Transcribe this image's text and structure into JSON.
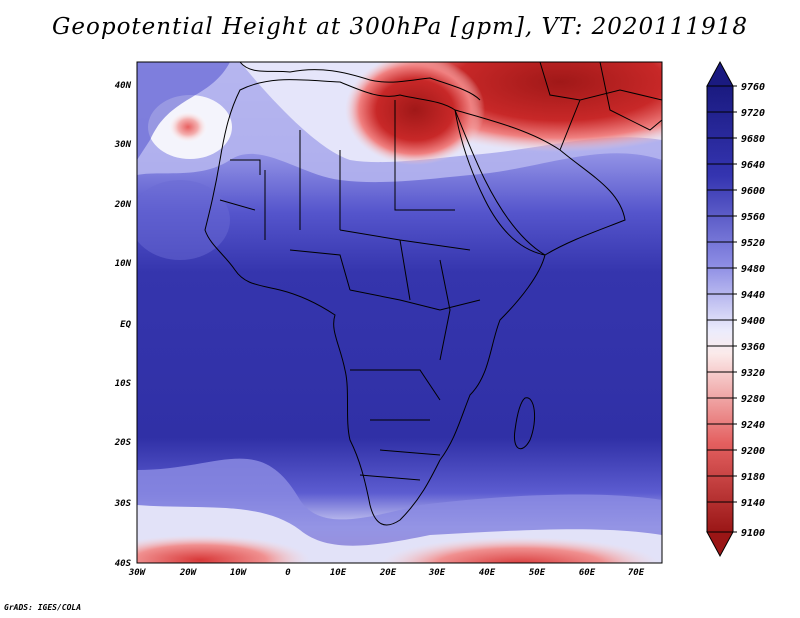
{
  "map": {
    "title": "Geopotential Height at 300hPa [gpm], VT: 2020111918",
    "footer": "GrADS: IGES/COLA",
    "x_ticks": [
      "30W",
      "20W",
      "10W",
      "0",
      "10E",
      "20E",
      "30E",
      "40E",
      "50E",
      "60E",
      "70E"
    ],
    "y_ticks": [
      "40N",
      "30N",
      "20N",
      "10N",
      "EQ",
      "10S",
      "20S",
      "30S",
      "40S"
    ],
    "colorbar_labels": [
      "9760",
      "9720",
      "9680",
      "9640",
      "9600",
      "9560",
      "9520",
      "9480",
      "9440",
      "9400",
      "9360",
      "9320",
      "9280",
      "9240",
      "9200",
      "9180",
      "9140",
      "9100"
    ],
    "colors": {
      "dark_blue": "#2c2c9e",
      "mid_blue": "#3a3ab8",
      "light_blue": "#8f8fe6",
      "pale": "#e6e6fa",
      "red_light": "#f09090",
      "red": "#d83030",
      "dark_red": "#a01818",
      "border": "#000000"
    }
  }
}
